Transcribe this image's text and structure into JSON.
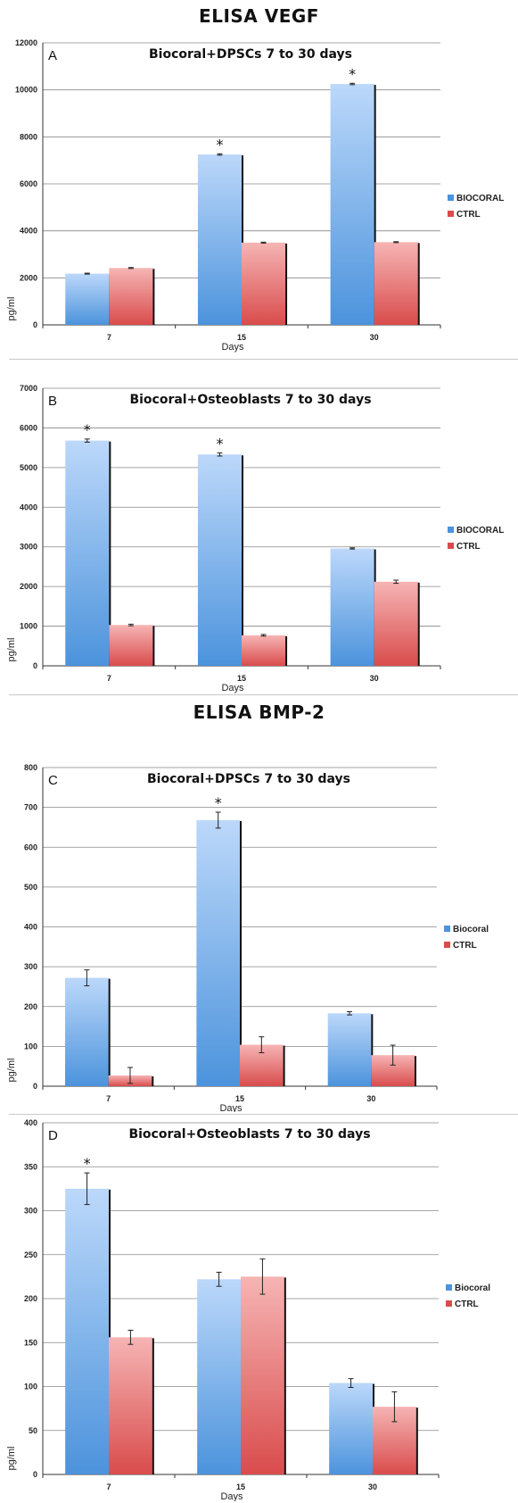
{
  "sections": [
    {
      "title": "ELISA VEGF"
    },
    {
      "title": "ELISA BMP-2"
    }
  ],
  "colors": {
    "biocoral_light": "#bcd8fa",
    "biocoral_dark": "#4c93dc",
    "ctrl_light": "#f6b4b4",
    "ctrl_dark": "#d94c4c",
    "grid": "#888888",
    "shadow": "#111111"
  },
  "chart_data": [
    {
      "type": "bar",
      "panel_letter": "A",
      "title": "Biocoral+DPSCs 7 to 30 days",
      "xlabel": "Days",
      "ylabel": "pg/ml",
      "categories": [
        "7",
        "15",
        "30"
      ],
      "ylim": [
        0,
        12000
      ],
      "yticks": [
        0,
        2000,
        4000,
        6000,
        8000,
        10000,
        12000
      ],
      "grid": true,
      "legend_position": "right",
      "series": [
        {
          "name": "BIOCORAL",
          "values": [
            2180,
            7250,
            10250
          ],
          "errors": [
            20,
            30,
            30
          ]
        },
        {
          "name": "CTRL",
          "values": [
            2420,
            3500,
            3520
          ],
          "errors": [
            20,
            20,
            20
          ]
        }
      ],
      "significance": [
        {
          "category": "15",
          "series": "BIOCORAL",
          "mark": "*"
        },
        {
          "category": "30",
          "series": "BIOCORAL",
          "mark": "*"
        }
      ]
    },
    {
      "type": "bar",
      "panel_letter": "B",
      "title": "Biocoral+Osteoblasts 7 to 30 days",
      "xlabel": "Days",
      "ylabel": "pg/ml",
      "categories": [
        "7",
        "15",
        "30"
      ],
      "ylim": [
        0,
        7000
      ],
      "yticks": [
        0,
        1000,
        2000,
        3000,
        4000,
        5000,
        6000,
        7000
      ],
      "grid": true,
      "legend_position": "right",
      "series": [
        {
          "name": "BIOCORAL",
          "values": [
            5680,
            5330,
            2960
          ],
          "errors": [
            40,
            40,
            15
          ]
        },
        {
          "name": "CTRL",
          "values": [
            1030,
            770,
            2120
          ],
          "errors": [
            20,
            20,
            40
          ]
        }
      ],
      "significance": [
        {
          "category": "7",
          "series": "BIOCORAL",
          "mark": "*"
        },
        {
          "category": "15",
          "series": "BIOCORAL",
          "mark": "*"
        }
      ]
    },
    {
      "type": "bar",
      "panel_letter": "C",
      "title": "Biocoral+DPSCs 7 to 30 days",
      "xlabel": "Days",
      "ylabel": "pg/ml",
      "categories": [
        "7",
        "15",
        "30"
      ],
      "ylim": [
        0,
        800
      ],
      "yticks": [
        0,
        100,
        200,
        300,
        400,
        500,
        600,
        700,
        800
      ],
      "grid": true,
      "legend_position": "right",
      "series": [
        {
          "name": "Biocoral",
          "values": [
            272,
            668,
            183
          ],
          "errors": [
            20,
            20,
            4
          ]
        },
        {
          "name": "CTRL",
          "values": [
            27,
            104,
            78
          ],
          "errors": [
            20,
            20,
            25
          ]
        }
      ],
      "significance": [
        {
          "category": "15",
          "series": "Biocoral",
          "mark": "*"
        }
      ]
    },
    {
      "type": "bar",
      "panel_letter": "D",
      "title": "Biocoral+Osteoblasts 7 to 30 days",
      "xlabel": "Days",
      "ylabel": "pg/ml",
      "categories": [
        "7",
        "15",
        "30"
      ],
      "ylim": [
        0,
        400
      ],
      "yticks": [
        0,
        50,
        100,
        150,
        200,
        250,
        300,
        350,
        400
      ],
      "grid": true,
      "legend_position": "right",
      "series": [
        {
          "name": "Biocoral",
          "values": [
            325,
            222,
            104
          ],
          "errors": [
            18,
            8,
            5
          ]
        },
        {
          "name": "CTRL",
          "values": [
            156,
            225,
            77
          ],
          "errors": [
            8,
            20,
            17
          ]
        }
      ],
      "significance": [
        {
          "category": "7",
          "series": "Biocoral",
          "mark": "*"
        }
      ]
    }
  ]
}
